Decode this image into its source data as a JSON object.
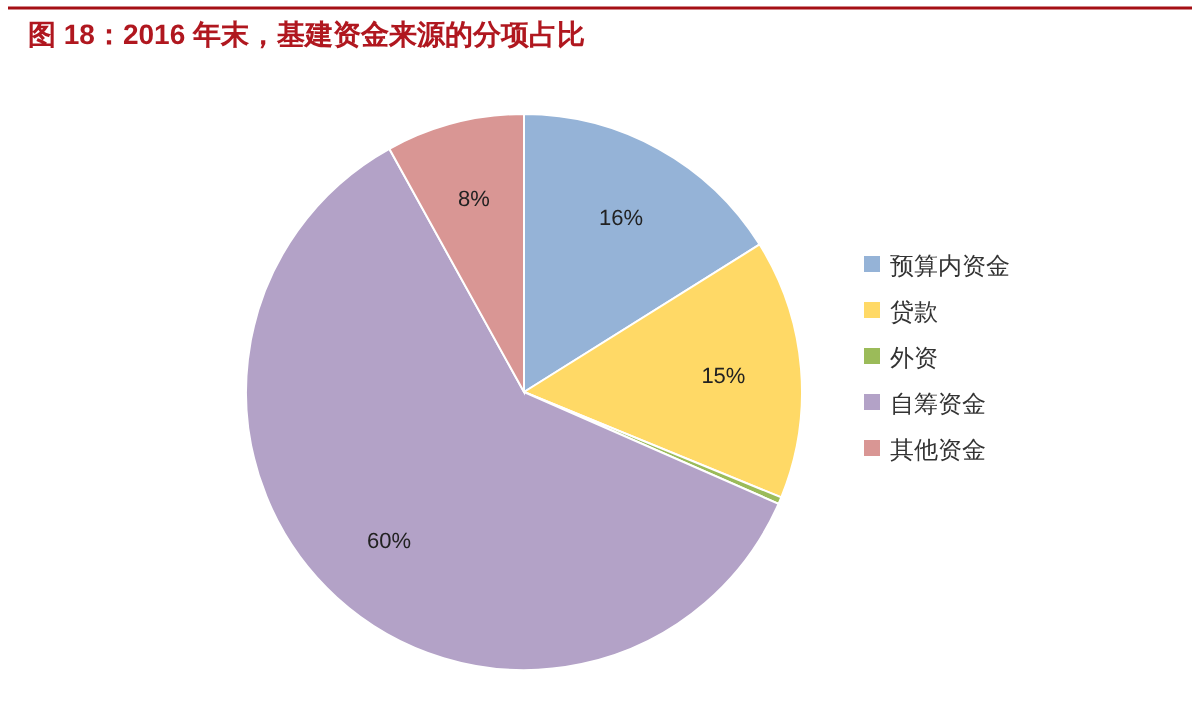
{
  "chart_data": {
    "type": "pie",
    "title": "图 18：2016 年末，基建资金来源的分项占比",
    "categories": [
      "预算内资金",
      "贷款",
      "外资",
      "自筹资金",
      "其他资金"
    ],
    "values": [
      16,
      15,
      0.4,
      60,
      8
    ],
    "colors": [
      "#95b3d7",
      "#ffd966",
      "#9bbb59",
      "#b3a2c7",
      "#d99694"
    ],
    "value_labels": [
      "16%",
      "15%",
      null,
      "60%",
      "8%"
    ],
    "legend": "right"
  }
}
